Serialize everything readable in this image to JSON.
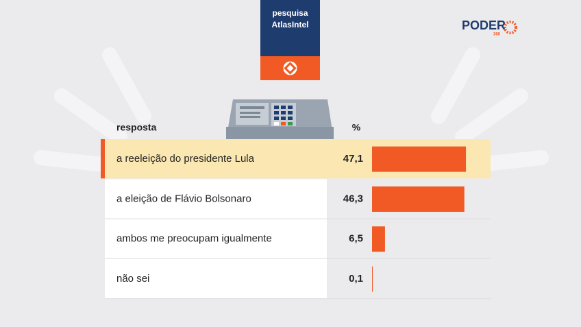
{
  "chart_data": {
    "type": "bar",
    "badge": [
      "pesquisa",
      "AtlasIntel"
    ],
    "brand": "PODER",
    "brand_sub": "360",
    "category_header": "resposta",
    "value_header": "%",
    "categories": [
      "a reeleição do presidente Lula",
      "a eleição de Flávio Bolsonaro",
      "ambos me preocupam igualmente",
      "não sei"
    ],
    "values": [
      47.1,
      46.3,
      6.5,
      0.1
    ],
    "value_labels": [
      "47,1",
      "46,3",
      "6,5",
      "0,1"
    ],
    "color": "#f15a24"
  }
}
